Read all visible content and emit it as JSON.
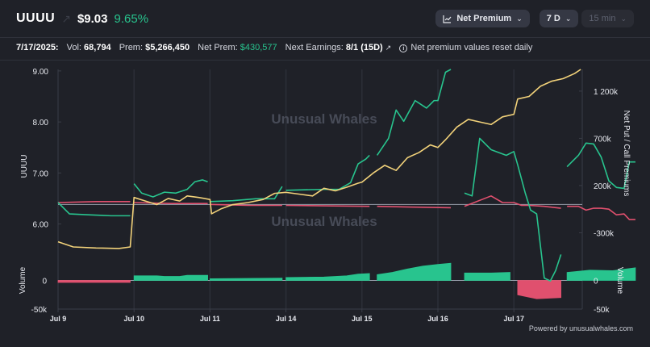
{
  "header": {
    "ticker": "UUUU",
    "price": "$9.03",
    "change": "9.65%",
    "metric_label": "Net Premium",
    "range_label": "7 D",
    "interval_label": "15 min"
  },
  "stats": {
    "date": "7/17/2025:",
    "vol_label": "Vol:",
    "vol_value": "68,794",
    "prem_label": "Prem:",
    "prem_value": "$5,266,450",
    "net_prem_label": "Net Prem:",
    "net_prem_value": "$430,577",
    "earnings_label": "Next Earnings:",
    "earnings_value": "8/1 (15D)",
    "note": "Net premium values reset daily"
  },
  "watermark": "Unusual Whales",
  "footer": "Powered by unusualwhales.com",
  "colors": {
    "price_line": "#f2d27a",
    "call_premium": "#28c48e",
    "put_premium": "#e0506e",
    "volume_positive": "#28c48e",
    "volume_negative": "#e0506e",
    "background": "#1f2128"
  },
  "chart_data": {
    "type": "line",
    "x_ticks": [
      "Jul 9",
      "Jul 10",
      "Jul 11",
      "Jul 14",
      "Jul 15",
      "Jul 16",
      "Jul 17"
    ],
    "left_axis": {
      "label": "UUUU",
      "ticks": [
        "9.00",
        "8.00",
        "7.00",
        "6.00"
      ],
      "range": [
        5.55,
        9.03
      ]
    },
    "right_axis": {
      "label": "Net Put / Call Premiums",
      "ticks": [
        "1 200k",
        "700k",
        "200k",
        "-300k"
      ],
      "range": [
        -450000,
        1430000
      ]
    },
    "volume_axis": {
      "label_left": "Volume",
      "label_right": "Volume",
      "left_ticks": [
        "0",
        "-50k"
      ],
      "right_ticks": [
        "0",
        "-50k"
      ],
      "range": [
        -50000,
        50000
      ]
    },
    "series": [
      {
        "key": "price",
        "axis": "left",
        "points": [
          [
            0.0,
            5.65
          ],
          [
            0.2,
            5.55
          ],
          [
            0.5,
            5.53
          ],
          [
            0.8,
            5.52
          ],
          [
            0.95,
            5.55
          ],
          [
            1.0,
            6.52
          ],
          [
            1.15,
            6.45
          ],
          [
            1.3,
            6.38
          ],
          [
            1.45,
            6.5
          ],
          [
            1.6,
            6.45
          ],
          [
            1.7,
            6.55
          ],
          [
            1.85,
            6.52
          ],
          [
            2.0,
            6.48
          ],
          [
            2.02,
            6.2
          ],
          [
            2.15,
            6.3
          ],
          [
            2.3,
            6.38
          ],
          [
            2.5,
            6.42
          ],
          [
            2.7,
            6.48
          ],
          [
            2.85,
            6.6
          ],
          [
            3.0,
            6.62
          ],
          [
            3.2,
            6.58
          ],
          [
            3.35,
            6.55
          ],
          [
            3.5,
            6.7
          ],
          [
            3.65,
            6.65
          ],
          [
            3.8,
            6.72
          ],
          [
            3.95,
            6.8
          ],
          [
            4.0,
            6.82
          ],
          [
            4.15,
            7.0
          ],
          [
            4.3,
            7.15
          ],
          [
            4.45,
            7.05
          ],
          [
            4.6,
            7.3
          ],
          [
            4.75,
            7.4
          ],
          [
            4.9,
            7.55
          ],
          [
            5.0,
            7.5
          ],
          [
            5.1,
            7.65
          ],
          [
            5.25,
            7.9
          ],
          [
            5.4,
            8.05
          ],
          [
            5.55,
            8.0
          ],
          [
            5.7,
            7.95
          ],
          [
            5.85,
            8.1
          ],
          [
            6.0,
            8.15
          ],
          [
            6.05,
            8.45
          ],
          [
            6.2,
            8.5
          ],
          [
            6.35,
            8.7
          ],
          [
            6.5,
            8.8
          ],
          [
            6.65,
            8.85
          ],
          [
            6.8,
            8.95
          ],
          [
            6.88,
            9.03
          ]
        ]
      },
      {
        "key": "call",
        "axis": "right",
        "segments": [
          [
            [
              0.0,
              20000
            ],
            [
              0.15,
              -100000
            ],
            [
              0.4,
              -110000
            ],
            [
              0.7,
              -120000
            ],
            [
              0.95,
              -120000
            ]
          ],
          [
            [
              1.0,
              220000
            ],
            [
              1.1,
              120000
            ],
            [
              1.25,
              80000
            ],
            [
              1.4,
              130000
            ],
            [
              1.55,
              120000
            ],
            [
              1.7,
              160000
            ],
            [
              1.8,
              240000
            ],
            [
              1.9,
              260000
            ],
            [
              1.97,
              240000
            ]
          ],
          [
            [
              2.0,
              30000
            ],
            [
              2.3,
              40000
            ],
            [
              2.6,
              60000
            ],
            [
              2.85,
              60000
            ],
            [
              2.95,
              190000
            ]
          ],
          [
            [
              3.0,
              150000
            ],
            [
              3.5,
              160000
            ],
            [
              3.7,
              160000
            ],
            [
              3.85,
              230000
            ],
            [
              3.95,
              430000
            ],
            [
              4.05,
              480000
            ],
            [
              4.1,
              520000
            ]
          ],
          [
            [
              4.2,
              520000
            ],
            [
              4.35,
              700000
            ],
            [
              4.45,
              1000000
            ],
            [
              4.55,
              880000
            ],
            [
              4.7,
              1100000
            ],
            [
              4.85,
              1020000
            ],
            [
              4.95,
              1100000
            ],
            [
              5.0,
              1100000
            ],
            [
              5.1,
              1400000
            ],
            [
              5.17,
              1430000
            ]
          ],
          [
            [
              5.35,
              120000
            ],
            [
              5.45,
              90000
            ],
            [
              5.55,
              700000
            ],
            [
              5.7,
              580000
            ],
            [
              5.9,
              520000
            ],
            [
              6.0,
              560000
            ],
            [
              6.05,
              420000
            ],
            [
              6.15,
              120000
            ],
            [
              6.22,
              -60000
            ],
            [
              6.3,
              -100000
            ],
            [
              6.4,
              -780000
            ],
            [
              6.48,
              -810000
            ],
            [
              6.55,
              -700000
            ],
            [
              6.62,
              -530000
            ]
          ],
          [
            [
              6.7,
              400000
            ],
            [
              6.85,
              520000
            ],
            [
              6.95,
              650000
            ],
            [
              7.05,
              640000
            ],
            [
              7.15,
              500000
            ],
            [
              7.25,
              250000
            ],
            [
              7.35,
              180000
            ],
            [
              7.45,
              170000
            ],
            [
              7.52,
              450000
            ],
            [
              7.6,
              450000
            ]
          ]
        ]
      },
      {
        "key": "put",
        "axis": "right",
        "segments": [
          [
            [
              0.0,
              20000
            ],
            [
              0.5,
              30000
            ],
            [
              0.95,
              30000
            ]
          ],
          [
            [
              1.0,
              20000
            ],
            [
              1.5,
              10000
            ],
            [
              1.97,
              10000
            ]
          ],
          [
            [
              2.0,
              0
            ],
            [
              2.5,
              -10000
            ],
            [
              2.95,
              -10000
            ]
          ],
          [
            [
              3.0,
              -10000
            ],
            [
              3.5,
              -15000
            ],
            [
              4.1,
              -20000
            ]
          ],
          [
            [
              4.2,
              -20000
            ],
            [
              4.8,
              -30000
            ],
            [
              5.17,
              -35000
            ]
          ],
          [
            [
              5.35,
              -20000
            ],
            [
              5.7,
              90000
            ],
            [
              5.85,
              20000
            ],
            [
              6.0,
              20000
            ],
            [
              6.1,
              -10000
            ],
            [
              6.2,
              -10000
            ],
            [
              6.4,
              -20000
            ],
            [
              6.62,
              -40000
            ]
          ],
          [
            [
              6.7,
              -20000
            ],
            [
              6.85,
              -20000
            ],
            [
              6.95,
              -60000
            ],
            [
              7.05,
              -40000
            ],
            [
              7.15,
              -40000
            ],
            [
              7.25,
              -50000
            ],
            [
              7.35,
              -110000
            ],
            [
              7.45,
              -100000
            ],
            [
              7.52,
              -160000
            ],
            [
              7.6,
              -160000
            ]
          ]
        ]
      },
      {
        "key": "volume",
        "axis": "volume",
        "segments": [
          [
            [
              0.0,
              -3500
            ],
            [
              0.95,
              -3500
            ]
          ],
          [
            [
              1.0,
              8000
            ],
            [
              1.3,
              8000
            ],
            [
              1.4,
              7000
            ],
            [
              1.6,
              7000
            ],
            [
              1.7,
              9000
            ],
            [
              1.97,
              9000
            ]
          ],
          [
            [
              2.0,
              3000
            ],
            [
              2.95,
              4000
            ]
          ],
          [
            [
              3.0,
              5000
            ],
            [
              3.5,
              6000
            ],
            [
              3.8,
              8000
            ],
            [
              3.95,
              11000
            ],
            [
              4.1,
              12000
            ]
          ],
          [
            [
              4.2,
              10000
            ],
            [
              4.4,
              14000
            ],
            [
              4.6,
              20000
            ],
            [
              4.8,
              25000
            ],
            [
              5.0,
              28000
            ],
            [
              5.17,
              30000
            ]
          ],
          [
            [
              5.35,
              13000
            ],
            [
              5.7,
              13000
            ],
            [
              5.95,
              14000
            ],
            [
              6.05,
              -25000
            ],
            [
              6.3,
              -32000
            ],
            [
              6.62,
              -30000
            ]
          ],
          [
            [
              6.7,
              14000
            ],
            [
              7.0,
              18000
            ],
            [
              7.3,
              17000
            ],
            [
              7.6,
              22000
            ]
          ]
        ]
      }
    ]
  }
}
